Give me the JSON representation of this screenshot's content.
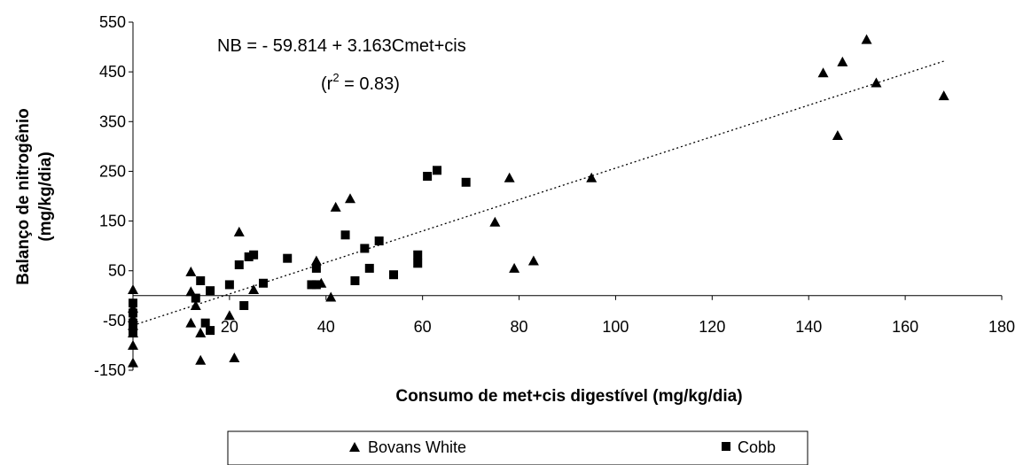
{
  "chart_data": {
    "type": "scatter",
    "xlabel": "Consumo de met+cis digestível (mg/kg/dia)",
    "ylabel_line1": "Balanço de nitrogênio",
    "ylabel_line2": "(mg/kg/dia)",
    "xlim": [
      0,
      180
    ],
    "ylim": [
      -150,
      550
    ],
    "xticks": [
      20,
      40,
      60,
      80,
      100,
      120,
      140,
      160,
      180
    ],
    "yticks": [
      -150,
      -50,
      50,
      150,
      250,
      350,
      450,
      550
    ],
    "equation_text": "NB = - 59.814 + 3.163Cmet+cis",
    "r2_text": {
      "prefix": "(r",
      "sup": "2",
      "suffix": " = 0.83)"
    },
    "regression": {
      "intercept": -59.814,
      "slope": 3.163,
      "x_range": [
        0,
        168
      ],
      "style": "dotted"
    },
    "legend_position": "bottom",
    "series": [
      {
        "name": "Bovans White",
        "marker": "triangle",
        "color": "#000000",
        "points": [
          [
            0,
            12
          ],
          [
            0,
            -135
          ],
          [
            0,
            -100
          ],
          [
            0,
            -75
          ],
          [
            0,
            -60
          ],
          [
            0,
            -45
          ],
          [
            0,
            -25
          ],
          [
            12,
            48
          ],
          [
            12,
            8
          ],
          [
            12,
            -55
          ],
          [
            13,
            -20
          ],
          [
            14,
            -75
          ],
          [
            14,
            -130
          ],
          [
            20,
            -40
          ],
          [
            21,
            -125
          ],
          [
            22,
            128
          ],
          [
            25,
            12
          ],
          [
            38,
            70
          ],
          [
            39,
            25
          ],
          [
            41,
            -3
          ],
          [
            42,
            178
          ],
          [
            45,
            195
          ],
          [
            75,
            148
          ],
          [
            78,
            237
          ],
          [
            79,
            55
          ],
          [
            83,
            70
          ],
          [
            95,
            237
          ],
          [
            143,
            448
          ],
          [
            146,
            322
          ],
          [
            147,
            470
          ],
          [
            152,
            515
          ],
          [
            154,
            428
          ],
          [
            168,
            402
          ]
        ]
      },
      {
        "name": "Cobb",
        "marker": "square",
        "color": "#000000",
        "points": [
          [
            0,
            -15
          ],
          [
            0,
            -35
          ],
          [
            0,
            -55
          ],
          [
            0,
            -65
          ],
          [
            0,
            -75
          ],
          [
            13,
            -5
          ],
          [
            14,
            30
          ],
          [
            15,
            -55
          ],
          [
            16,
            10
          ],
          [
            16,
            -70
          ],
          [
            20,
            22
          ],
          [
            22,
            62
          ],
          [
            23,
            -20
          ],
          [
            24,
            78
          ],
          [
            25,
            82
          ],
          [
            27,
            25
          ],
          [
            32,
            75
          ],
          [
            37,
            22
          ],
          [
            38,
            22
          ],
          [
            38,
            55
          ],
          [
            44,
            122
          ],
          [
            46,
            30
          ],
          [
            48,
            95
          ],
          [
            49,
            55
          ],
          [
            51,
            110
          ],
          [
            54,
            42
          ],
          [
            59,
            82
          ],
          [
            59,
            65
          ],
          [
            61,
            240
          ],
          [
            63,
            252
          ],
          [
            69,
            228
          ]
        ]
      }
    ]
  }
}
